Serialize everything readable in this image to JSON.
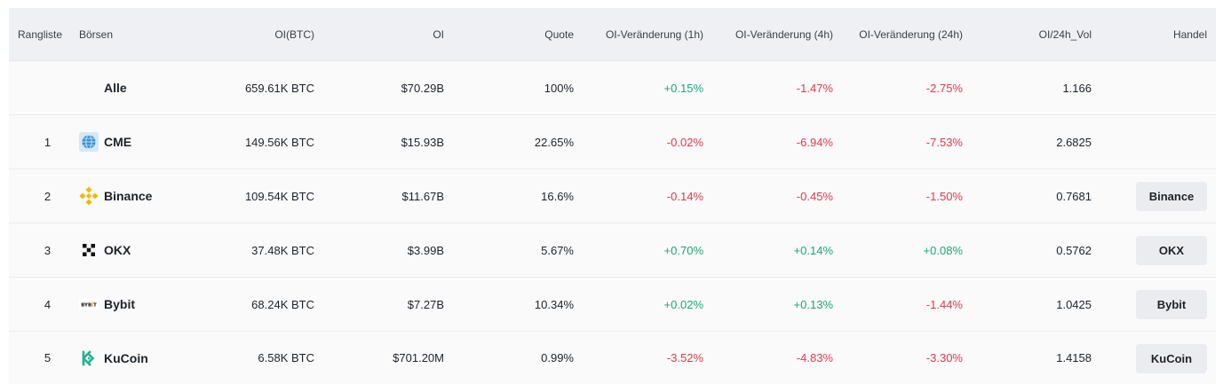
{
  "headers": {
    "rank": "Rangliste",
    "exchange": "Börsen",
    "oi_btc": "OI(BTC)",
    "oi": "OI",
    "quote": "Quote",
    "chg_1h": "OI-Veränderung (1h)",
    "chg_4h": "OI-Veränderung (4h)",
    "chg_24h": "OI-Veränderung (24h)",
    "oi_vol": "OI/24h_Vol",
    "trade": "Handel"
  },
  "summary": {
    "name": "Alle",
    "oi_btc": "659.61K BTC",
    "oi": "$70.29B",
    "quote": "100%",
    "chg_1h": "+0.15%",
    "chg_4h": "-1.47%",
    "chg_24h": "-2.75%",
    "oi_vol": "1.166"
  },
  "rows": [
    {
      "rank": "1",
      "name": "CME",
      "icon": "globe-icon",
      "oi_btc": "149.56K BTC",
      "oi": "$15.93B",
      "quote": "22.65%",
      "chg_1h": "-0.02%",
      "chg_4h": "-6.94%",
      "chg_24h": "-7.53%",
      "oi_vol": "2.6825",
      "trade": ""
    },
    {
      "rank": "2",
      "name": "Binance",
      "icon": "binance-logo-icon",
      "oi_btc": "109.54K BTC",
      "oi": "$11.67B",
      "quote": "16.6%",
      "chg_1h": "-0.14%",
      "chg_4h": "-0.45%",
      "chg_24h": "-1.50%",
      "oi_vol": "0.7681",
      "trade": "Binance"
    },
    {
      "rank": "3",
      "name": "OKX",
      "icon": "okx-logo-icon",
      "oi_btc": "37.48K BTC",
      "oi": "$3.99B",
      "quote": "5.67%",
      "chg_1h": "+0.70%",
      "chg_4h": "+0.14%",
      "chg_24h": "+0.08%",
      "oi_vol": "0.5762",
      "trade": "OKX"
    },
    {
      "rank": "4",
      "name": "Bybit",
      "icon": "bybit-logo-icon",
      "oi_btc": "68.24K BTC",
      "oi": "$7.27B",
      "quote": "10.34%",
      "chg_1h": "+0.02%",
      "chg_4h": "+0.13%",
      "chg_24h": "-1.44%",
      "oi_vol": "1.0425",
      "trade": "Bybit"
    },
    {
      "rank": "5",
      "name": "KuCoin",
      "icon": "kucoin-logo-icon",
      "oi_btc": "6.58K BTC",
      "oi": "$701.20M",
      "quote": "0.99%",
      "chg_1h": "-3.52%",
      "chg_4h": "-4.83%",
      "chg_24h": "-3.30%",
      "oi_vol": "1.4158",
      "trade": "KuCoin"
    }
  ],
  "logo_text": {
    "bybit": "BYBIT"
  },
  "colors": {
    "positive": "#1aa774",
    "negative": "#e0384b",
    "binance": "#f0b90b",
    "kucoin": "#23af91",
    "cme": "#3d8fd6"
  }
}
